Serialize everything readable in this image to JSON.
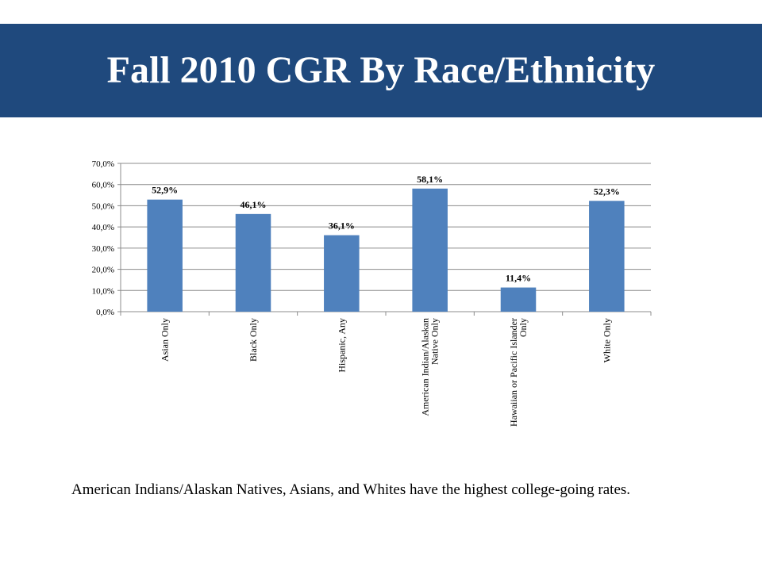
{
  "slide": {
    "title": "Fall 2010 CGR By Race/Ethnicity",
    "caption": "American Indians/Alaskan Natives, Asians, and Whites have the highest college-going rates."
  },
  "colors": {
    "title_bar": "#1f497d",
    "bar": "#4f81bd"
  },
  "chart_data": {
    "type": "bar",
    "categories": [
      [
        "Asian Only"
      ],
      [
        "Black Only"
      ],
      [
        "Hispanic, Any"
      ],
      [
        "American Indian/Alaskan",
        "Native Only"
      ],
      [
        "Hawaiian or Pacific Islander",
        "Only"
      ],
      [
        "White Only"
      ]
    ],
    "values": [
      52.9,
      46.1,
      36.1,
      58.1,
      11.4,
      52.3
    ],
    "data_labels": [
      "52,9%",
      "46,1%",
      "36,1%",
      "58,1%",
      "11,4%",
      "52,3%"
    ],
    "y_ticks": [
      "0,0%",
      "10,0%",
      "20,0%",
      "30,0%",
      "40,0%",
      "50,0%",
      "60,0%",
      "70,0%"
    ],
    "ylim": [
      0,
      70
    ],
    "grid": true,
    "legend": "none",
    "title": "",
    "xlabel": "",
    "ylabel": ""
  }
}
